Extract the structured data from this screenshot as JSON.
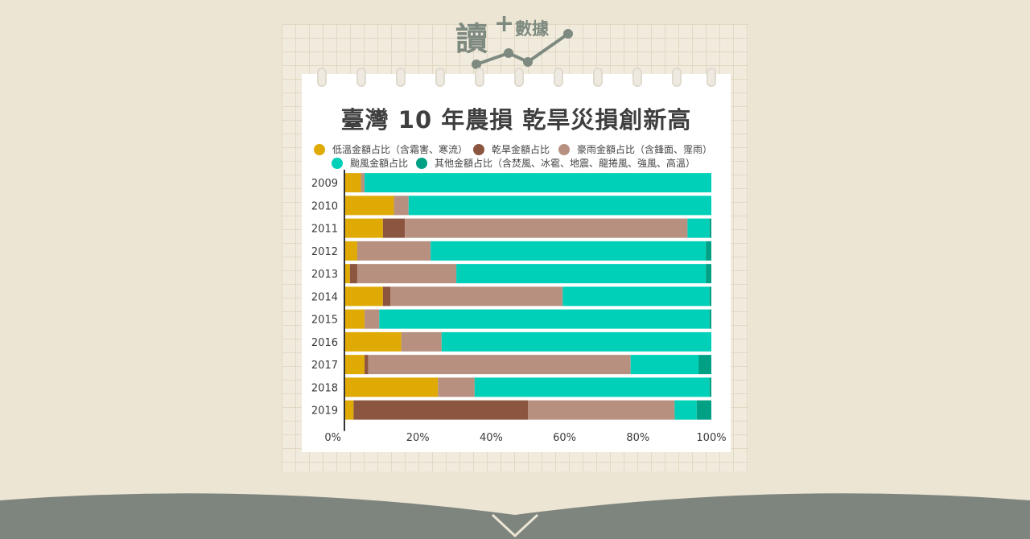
{
  "logo": {
    "main_char": "讀",
    "plus": "+",
    "sub_text": "數據"
  },
  "chart_data": {
    "type": "bar",
    "orientation": "horizontal",
    "stacked": true,
    "title": "臺灣 10 年農損  乾旱災損創新高",
    "categories": [
      "2009",
      "2010",
      "2011",
      "2012",
      "2013",
      "2014",
      "2015",
      "2016",
      "2017",
      "2018",
      "2019"
    ],
    "series": [
      {
        "name": "低溫金額占比（含霜害、寒流）",
        "color": "#e0aa05",
        "values": [
          4.5,
          13.5,
          10.5,
          3.5,
          1.5,
          10.5,
          5.5,
          15.5,
          5.5,
          25.5,
          2.5
        ]
      },
      {
        "name": "乾旱金額占比",
        "color": "#8c5540",
        "values": [
          0,
          0,
          6,
          0,
          2,
          2,
          0,
          0,
          1,
          0,
          47.5
        ]
      },
      {
        "name": "豪雨金額占比（含鋒面、霪雨）",
        "color": "#b89080",
        "values": [
          1,
          4,
          77,
          20,
          27,
          47,
          4,
          11,
          71.5,
          10,
          40
        ]
      },
      {
        "name": "颱風金額占比",
        "color": "#00d0b8",
        "values": [
          94.5,
          82.5,
          6,
          75,
          68,
          40,
          90,
          73.5,
          18.5,
          64,
          6
        ]
      },
      {
        "name": "其他金額占比（含焚風、冰雹、地震、龍捲風、強風、高溫）",
        "color": "#00a085",
        "values": [
          0,
          0,
          0.5,
          1.5,
          1.5,
          0.5,
          0.5,
          0,
          3.5,
          0.5,
          4
        ]
      }
    ],
    "x_ticks": [
      "0%",
      "20%",
      "40%",
      "60%",
      "80%",
      "100%"
    ],
    "xlim": [
      0,
      100
    ],
    "grid": false,
    "legend_position": "top"
  }
}
